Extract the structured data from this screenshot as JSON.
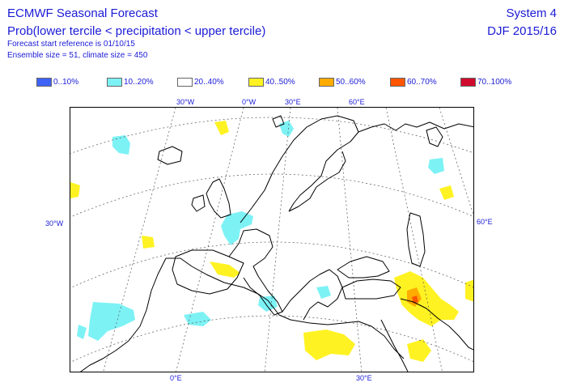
{
  "header": {
    "title": "ECMWF Seasonal Forecast",
    "subtitle": "Prob(lower tercile < precipitation < upper tercile)",
    "forecast_start": "Forecast start reference is 01/10/15",
    "ensemble": "Ensemble size = 51, climate size = 450",
    "system": "System 4",
    "period": "DJF 2015/16"
  },
  "legend": [
    {
      "label": "0..10%",
      "color": "#3d62f5"
    },
    {
      "label": "10..20%",
      "color": "#7df2f5"
    },
    {
      "label": "20..40%",
      "color": "#ffffff"
    },
    {
      "label": "40..50%",
      "color": "#fff222"
    },
    {
      "label": "50..60%",
      "color": "#ffab00"
    },
    {
      "label": "60..70%",
      "color": "#ff5500"
    },
    {
      "label": "70..100%",
      "color": "#d00b2d"
    }
  ],
  "graticule_labels": {
    "top": [
      "30°W",
      "0°W",
      "30°E",
      "60°E"
    ],
    "bottom": [
      "0°E",
      "30°E"
    ],
    "left": [
      "30°W"
    ],
    "right": [
      "60°E"
    ]
  },
  "colors": {
    "text": "#1b1bd6",
    "coast": "#000000",
    "graticule": "#555555",
    "cyan": "#7df2f5",
    "yellow": "#fff222",
    "orange": "#ffab00",
    "red": "#ff5500"
  }
}
